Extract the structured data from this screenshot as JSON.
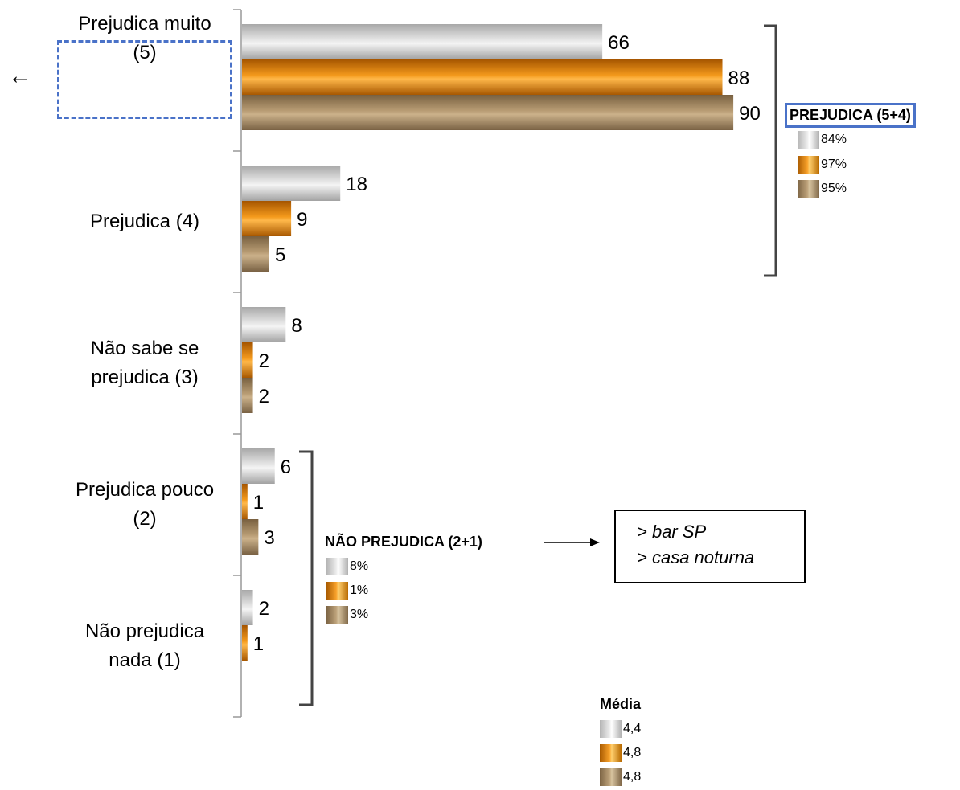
{
  "chart_data": {
    "type": "bar",
    "orientation": "horizontal",
    "categories": [
      [
        "Prejudica muito",
        "(5)"
      ],
      [
        "Prejudica (4)"
      ],
      [
        "Não sabe se",
        "prejudica (3)"
      ],
      [
        "Prejudica pouco",
        "(2)"
      ],
      [
        "Não prejudica",
        "nada (1)"
      ]
    ],
    "series": [
      {
        "color": "#c8c8c8",
        "values": [
          66,
          18,
          8,
          6,
          2
        ]
      },
      {
        "color": "#f08c00",
        "values": [
          88,
          9,
          2,
          1,
          1
        ]
      },
      {
        "color": "#a08660",
        "values": [
          90,
          5,
          2,
          3,
          null
        ]
      }
    ],
    "value_labels": [
      [
        "66",
        "18",
        "8",
        "6",
        "2"
      ],
      [
        "88",
        "9",
        "2",
        "1",
        "1"
      ],
      [
        "90",
        "5",
        "2",
        "3",
        ""
      ]
    ],
    "xlim": [
      0,
      100
    ],
    "grid": false,
    "legend": "none"
  },
  "left_arrow": "←",
  "summary_top": {
    "title": "PREJUDICA (5+4)",
    "values": [
      "84%",
      "97%",
      "95%"
    ]
  },
  "summary_bottom": {
    "title": "NÃO PREJUDICA (2+1)",
    "values": [
      "8%",
      "1%",
      "3%"
    ]
  },
  "note": {
    "lines": [
      "> bar SP",
      "> casa noturna"
    ]
  },
  "average": {
    "title": "Média",
    "values": [
      "4,4",
      "4,8",
      "4,8"
    ]
  },
  "colors": {
    "gray": "#c8c8c8",
    "orange": "#f08c00",
    "tan": "#a08660",
    "highlight_blue": "#4a72c8"
  }
}
